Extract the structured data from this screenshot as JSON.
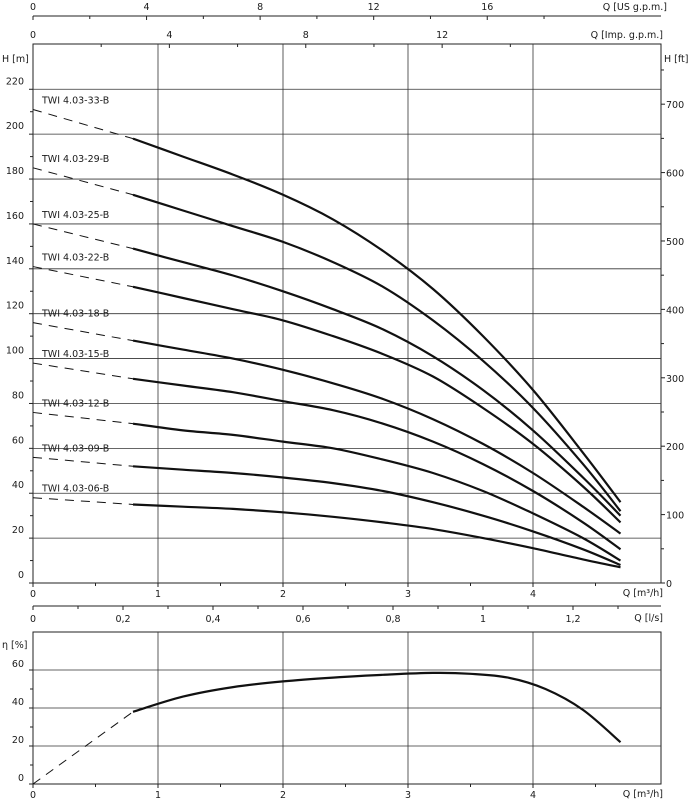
{
  "chart_data": [
    {
      "type": "line",
      "title": "",
      "xlabel": "Q [m³/h]",
      "ylabel": "H [m]",
      "y2label": "H [ft]",
      "top_axis_1_label": "Q [US g.p.m.]",
      "top_axis_1_ticks": [
        "0",
        "4",
        "8",
        "12",
        "16"
      ],
      "top_axis_2_label": "Q [Imp. g.p.m.]",
      "top_axis_2_ticks": [
        "0",
        "4",
        "8",
        "12"
      ],
      "bottom_axis_2_label": "Q [l/s]",
      "bottom_axis_2_ticks": [
        "0",
        "0,2",
        "0,4",
        "0,6",
        "0,8",
        "1",
        "1,2"
      ],
      "x_ticks": [
        "0",
        "1",
        "2",
        "3",
        "4"
      ],
      "y_ticks": [
        "0",
        "20",
        "40",
        "60",
        "80",
        "100",
        "120",
        "140",
        "160",
        "180",
        "200",
        "220"
      ],
      "y2_ticks": [
        "0",
        "100",
        "200",
        "300",
        "400",
        "500",
        "600",
        "700"
      ],
      "xlim": [
        0,
        5
      ],
      "ylim": [
        0,
        240
      ],
      "grid": true,
      "series": [
        {
          "name": "TWI 4.03-33-B",
          "dashed": {
            "x": [
              0,
              0.8
            ],
            "y": [
              211,
              198
            ]
          },
          "x": [
            0.8,
            1.2,
            1.6,
            2.0,
            2.4,
            2.8,
            3.2,
            3.6,
            4.0,
            4.4,
            4.7
          ],
          "y": [
            198,
            190,
            182,
            173,
            162,
            148,
            131,
            110,
            86,
            58,
            36
          ]
        },
        {
          "name": "TWI 4.03-29-B",
          "dashed": {
            "x": [
              0,
              0.8
            ],
            "y": [
              185,
              173
            ]
          },
          "x": [
            0.8,
            1.2,
            1.6,
            2.0,
            2.4,
            2.8,
            3.2,
            3.6,
            4.0,
            4.4,
            4.7
          ],
          "y": [
            173,
            166,
            159,
            152,
            143,
            132,
            117,
            99,
            78,
            53,
            32
          ]
        },
        {
          "name": "TWI 4.03-25-B",
          "dashed": {
            "x": [
              0,
              0.8
            ],
            "y": [
              160,
              149
            ]
          },
          "x": [
            0.8,
            1.2,
            1.6,
            2.0,
            2.4,
            2.8,
            3.2,
            3.6,
            4.0,
            4.4,
            4.7
          ],
          "y": [
            149,
            143,
            137,
            130,
            122,
            113,
            101,
            86,
            68,
            47,
            30
          ]
        },
        {
          "name": "TWI 4.03-22-B",
          "dashed": {
            "x": [
              0,
              0.8
            ],
            "y": [
              141,
              132
            ]
          },
          "x": [
            0.8,
            1.2,
            1.6,
            2.0,
            2.4,
            2.8,
            3.2,
            3.6,
            4.0,
            4.4,
            4.7
          ],
          "y": [
            132,
            127,
            122,
            117,
            110,
            102,
            92,
            78,
            62,
            43,
            27
          ]
        },
        {
          "name": "TWI 4.03-18-B",
          "dashed": {
            "x": [
              0,
              0.8
            ],
            "y": [
              116,
              108
            ]
          },
          "x": [
            0.8,
            1.2,
            1.6,
            2.0,
            2.4,
            2.8,
            3.2,
            3.6,
            4.0,
            4.4,
            4.7
          ],
          "y": [
            108,
            104,
            100,
            95,
            89,
            82,
            73,
            62,
            49,
            34,
            22
          ]
        },
        {
          "name": "TWI 4.03-15-B",
          "dashed": {
            "x": [
              0,
              0.8
            ],
            "y": [
              98,
              91
            ]
          },
          "x": [
            0.8,
            1.2,
            1.6,
            2.0,
            2.4,
            2.8,
            3.2,
            3.6,
            4.0,
            4.4,
            4.7
          ],
          "y": [
            91,
            88,
            85,
            81,
            77,
            71,
            63,
            53,
            41,
            27,
            15
          ]
        },
        {
          "name": "TWI 4.03-12-B",
          "dashed": {
            "x": [
              0,
              0.8
            ],
            "y": [
              76,
              71
            ]
          },
          "x": [
            0.8,
            1.2,
            1.6,
            2.0,
            2.4,
            2.8,
            3.2,
            3.6,
            4.0,
            4.4,
            4.7
          ],
          "y": [
            71,
            68,
            66,
            63,
            60,
            55,
            49,
            41,
            31,
            20,
            10
          ]
        },
        {
          "name": "TWI 4.03-09-B",
          "dashed": {
            "x": [
              0,
              0.8
            ],
            "y": [
              56,
              52
            ]
          },
          "x": [
            0.8,
            1.2,
            1.6,
            2.0,
            2.4,
            2.8,
            3.2,
            3.6,
            4.0,
            4.4,
            4.7
          ],
          "y": [
            52,
            50.5,
            49,
            47,
            44.5,
            41,
            36,
            30,
            23,
            15,
            8
          ]
        },
        {
          "name": "TWI 4.03-06-B",
          "dashed": {
            "x": [
              0,
              0.8
            ],
            "y": [
              38,
              35
            ]
          },
          "x": [
            0.8,
            1.2,
            1.6,
            2.0,
            2.4,
            2.8,
            3.2,
            3.6,
            4.0,
            4.4,
            4.7
          ],
          "y": [
            35,
            34,
            33,
            31.5,
            29.5,
            27,
            24,
            20,
            15.5,
            10.5,
            7
          ]
        }
      ]
    },
    {
      "type": "line",
      "title": "",
      "xlabel": "Q [m³/h]",
      "ylabel": "η [%]",
      "x_ticks": [
        "0",
        "1",
        "2",
        "3",
        "4"
      ],
      "y_ticks": [
        "0",
        "20",
        "40",
        "60"
      ],
      "xlim": [
        0,
        5
      ],
      "ylim": [
        0,
        70
      ],
      "grid": true,
      "series": [
        {
          "name": "",
          "dashed": {
            "x": [
              0,
              0.8
            ],
            "y": [
              0,
              38
            ]
          },
          "x": [
            0.8,
            1.2,
            1.6,
            2.0,
            2.4,
            2.8,
            3.2,
            3.5,
            3.8,
            4.1,
            4.4,
            4.7
          ],
          "y": [
            38,
            46,
            51,
            54,
            56,
            57.5,
            58.5,
            58,
            56,
            50,
            39,
            22
          ]
        }
      ]
    }
  ]
}
